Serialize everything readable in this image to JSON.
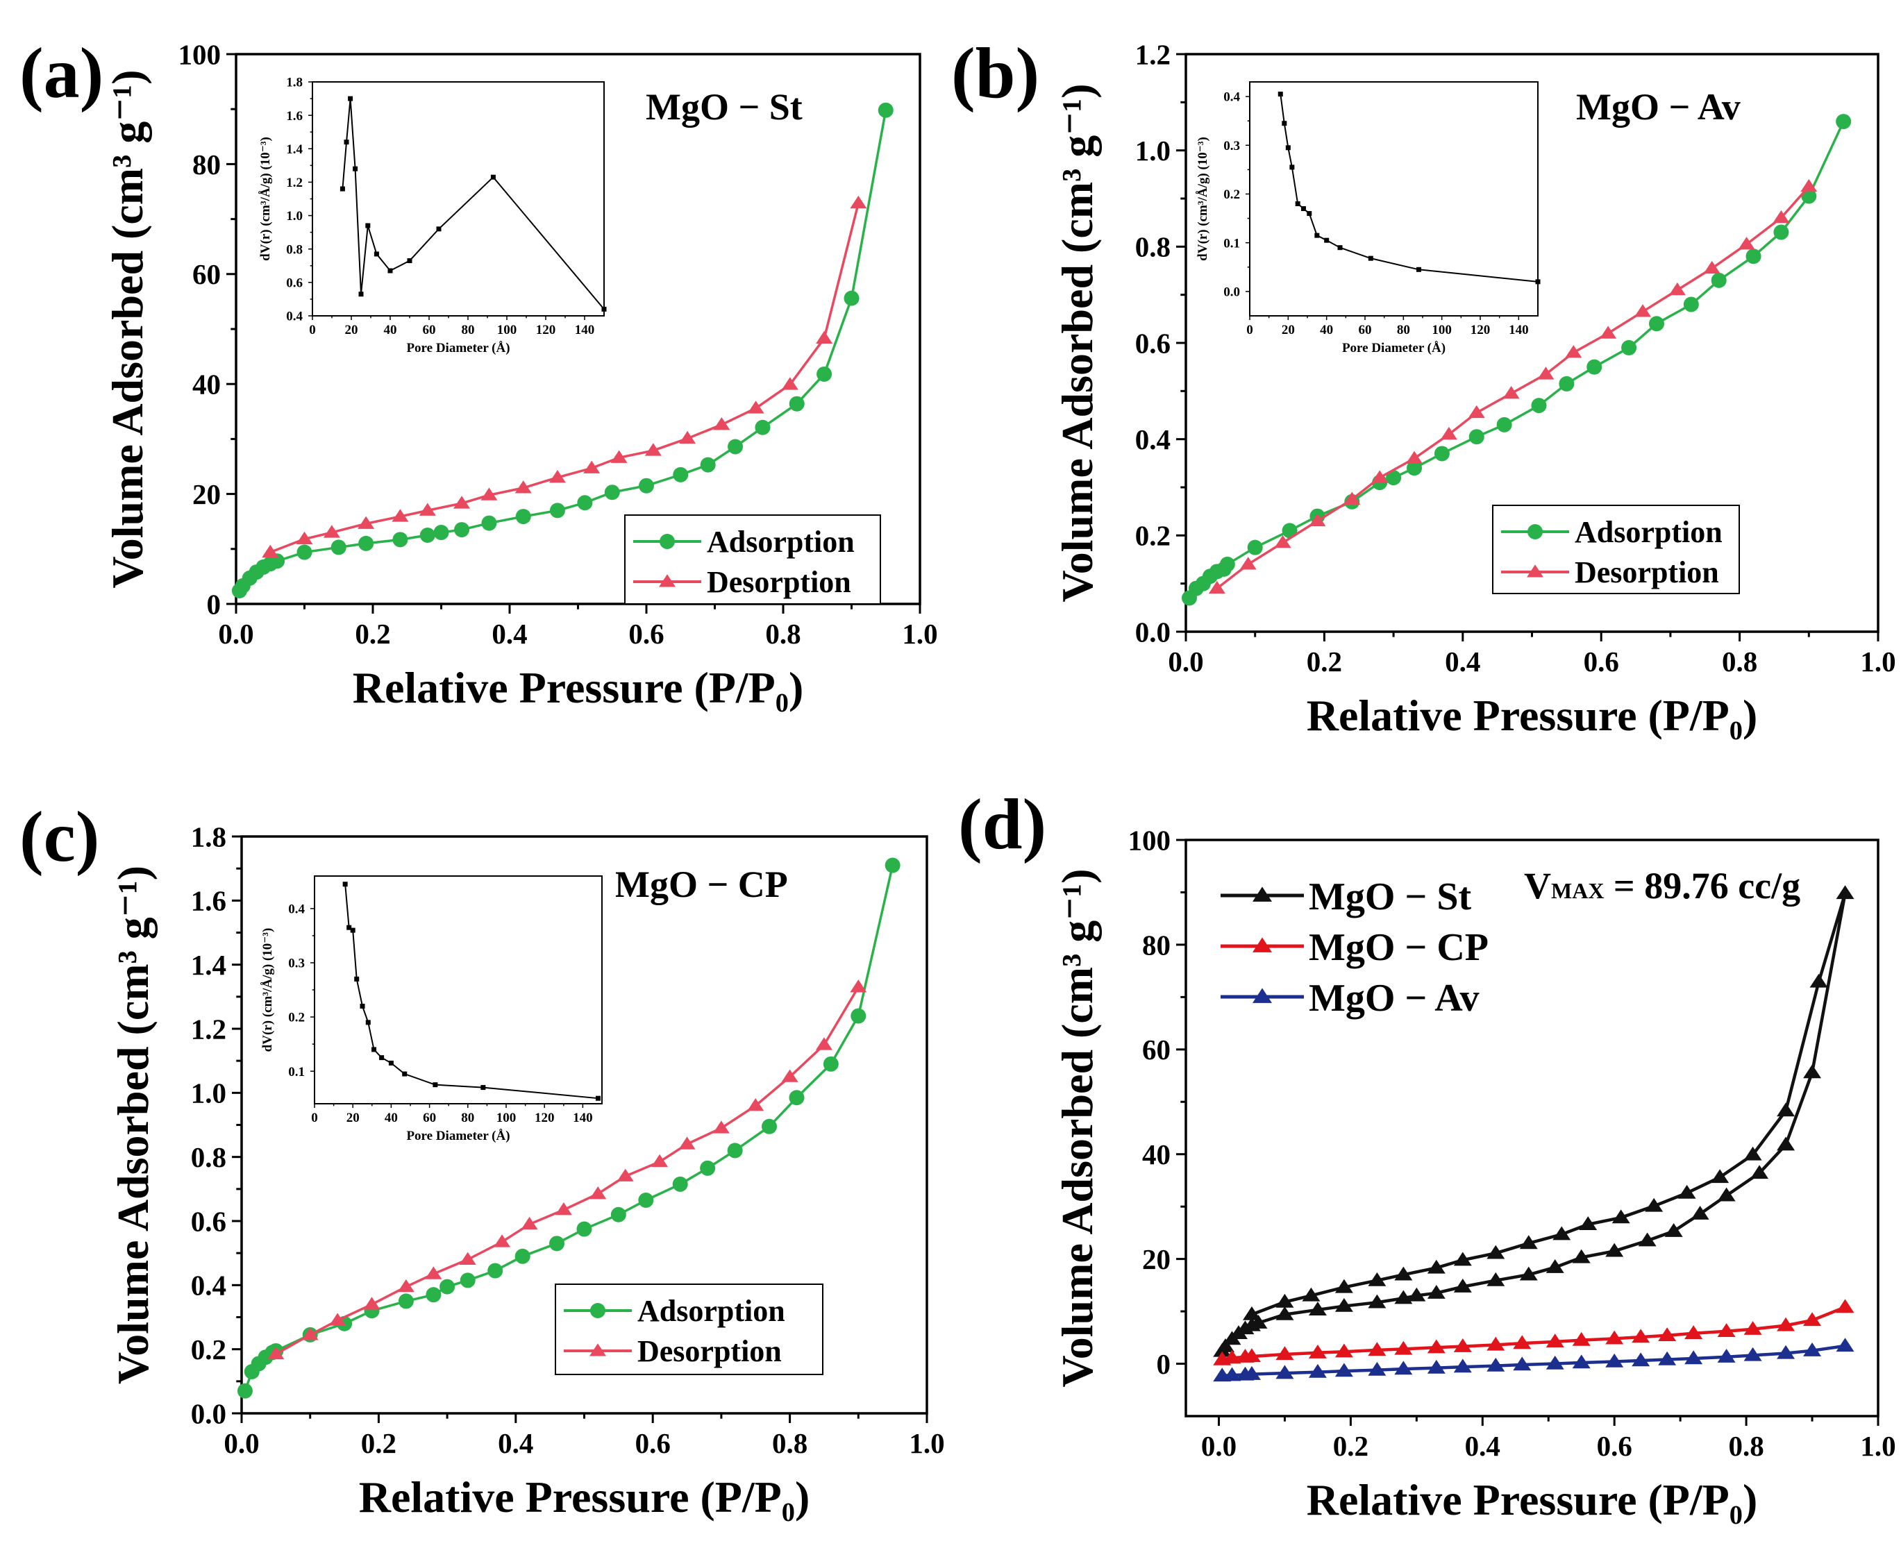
{
  "chart_data": [
    {
      "panel": "(a)",
      "type": "line",
      "material": "MgO − St",
      "xlabel": "Relative Pressure (P/P₀)",
      "ylabel": "Volume Adsorbed (cm³ g⁻¹)",
      "xlim": [
        0,
        1.0
      ],
      "ylim": [
        0,
        100
      ],
      "xticks": [
        0.0,
        0.2,
        0.4,
        0.6,
        0.8,
        1.0
      ],
      "yticks": [
        0,
        20,
        40,
        60,
        80,
        100
      ],
      "legend_position": "bottom-right",
      "series": [
        {
          "name": "Adsorption",
          "color": "#2ab24a",
          "marker": "circle",
          "x": [
            0.005,
            0.01,
            0.02,
            0.03,
            0.04,
            0.05,
            0.06,
            0.1,
            0.15,
            0.19,
            0.24,
            0.28,
            0.3,
            0.33,
            0.37,
            0.42,
            0.47,
            0.51,
            0.55,
            0.6,
            0.65,
            0.69,
            0.73,
            0.77,
            0.82,
            0.86,
            0.9,
            0.95
          ],
          "y": [
            2.4,
            3.3,
            4.7,
            5.8,
            6.7,
            7.3,
            7.8,
            9.4,
            10.3,
            11.0,
            11.7,
            12.5,
            13.0,
            13.5,
            14.7,
            15.9,
            17.0,
            18.4,
            20.3,
            21.5,
            23.5,
            25.3,
            28.6,
            32.1,
            36.4,
            41.8,
            55.6,
            89.8
          ]
        },
        {
          "name": "Desorption",
          "color": "#e8495f",
          "marker": "triangle",
          "x": [
            0.91,
            0.86,
            0.81,
            0.76,
            0.71,
            0.66,
            0.61,
            0.56,
            0.52,
            0.47,
            0.42,
            0.37,
            0.33,
            0.28,
            0.24,
            0.19,
            0.14,
            0.1,
            0.05
          ],
          "y": [
            72.9,
            48.3,
            39.9,
            35.6,
            32.6,
            30.1,
            27.9,
            26.6,
            24.7,
            23.0,
            21.1,
            19.8,
            18.3,
            17.0,
            15.9,
            14.6,
            13.0,
            11.8,
            9.4
          ]
        }
      ],
      "inset": {
        "xlabel": "Pore Diameter (Å)",
        "ylabel": "dV(r) (cm³/Å/g) (10⁻³)",
        "xlim": [
          0,
          150
        ],
        "ylim": [
          0.4,
          1.8
        ],
        "xticks": [
          0,
          20,
          40,
          60,
          80,
          100,
          120,
          140
        ],
        "yticks": [
          0.4,
          0.6,
          0.8,
          1.0,
          1.2,
          1.4,
          1.6,
          1.8
        ],
        "x": [
          15.5,
          17.5,
          19.5,
          22,
          25,
          28.5,
          33,
          40,
          50,
          65,
          93,
          150
        ],
        "y": [
          1.16,
          1.44,
          1.7,
          1.28,
          0.53,
          0.94,
          0.77,
          0.67,
          0.73,
          0.92,
          1.23,
          0.44
        ]
      }
    },
    {
      "panel": "(b)",
      "type": "line",
      "material": "MgO − Av",
      "xlabel": "Relative Pressure (P/P₀)",
      "ylabel": "Volume Adsorbed (cm³ g⁻¹)",
      "xlim": [
        0,
        1.0
      ],
      "ylim": [
        0,
        1.2
      ],
      "xticks": [
        0.0,
        0.2,
        0.4,
        0.6,
        0.8,
        1.0
      ],
      "yticks": [
        0.0,
        0.2,
        0.4,
        0.6,
        0.8,
        1.0,
        1.2
      ],
      "legend_position": "bottom-right",
      "series": [
        {
          "name": "Adsorption",
          "color": "#2ab24a",
          "marker": "circle",
          "x": [
            0.005,
            0.015,
            0.025,
            0.035,
            0.045,
            0.055,
            0.06,
            0.1,
            0.15,
            0.19,
            0.24,
            0.28,
            0.3,
            0.33,
            0.37,
            0.42,
            0.46,
            0.51,
            0.55,
            0.59,
            0.64,
            0.68,
            0.73,
            0.77,
            0.82,
            0.86,
            0.9,
            0.95
          ],
          "y": [
            0.07,
            0.09,
            0.1,
            0.115,
            0.125,
            0.13,
            0.14,
            0.175,
            0.21,
            0.24,
            0.27,
            0.31,
            0.32,
            0.34,
            0.37,
            0.405,
            0.43,
            0.47,
            0.515,
            0.55,
            0.59,
            0.64,
            0.68,
            0.73,
            0.78,
            0.83,
            0.905,
            1.06
          ]
        },
        {
          "name": "Desorption",
          "color": "#e8495f",
          "marker": "triangle",
          "x": [
            0.9,
            0.86,
            0.81,
            0.76,
            0.71,
            0.66,
            0.61,
            0.56,
            0.52,
            0.47,
            0.42,
            0.38,
            0.33,
            0.28,
            0.24,
            0.19,
            0.14,
            0.09,
            0.045
          ],
          "y": [
            0.925,
            0.86,
            0.805,
            0.755,
            0.71,
            0.665,
            0.62,
            0.58,
            0.535,
            0.495,
            0.455,
            0.41,
            0.36,
            0.32,
            0.275,
            0.23,
            0.185,
            0.14,
            0.09
          ]
        }
      ],
      "inset": {
        "xlabel": "Pore Diameter (Å)",
        "ylabel": "dV(r) (cm³/Å/g) (10⁻³)",
        "xlim": [
          0,
          150
        ],
        "ylim": [
          -0.05,
          0.43
        ],
        "xticks": [
          0,
          20,
          40,
          60,
          80,
          100,
          120,
          140
        ],
        "yticks": [
          0.0,
          0.1,
          0.2,
          0.3,
          0.4
        ],
        "x": [
          16,
          18,
          20,
          22,
          25,
          28,
          31,
          35,
          40,
          47,
          63,
          88,
          150
        ],
        "y": [
          0.405,
          0.345,
          0.295,
          0.255,
          0.18,
          0.17,
          0.16,
          0.115,
          0.105,
          0.09,
          0.068,
          0.045,
          0.02
        ]
      }
    },
    {
      "panel": "(c)",
      "type": "line",
      "material": "MgO − CP",
      "xlabel": "Relative Pressure (P/P₀)",
      "ylabel": "Volume Adsorbed (cm³ g⁻¹)",
      "xlim": [
        0,
        1.0
      ],
      "ylim": [
        0,
        1.8
      ],
      "xticks": [
        0.0,
        0.2,
        0.4,
        0.6,
        0.8,
        1.0
      ],
      "yticks": [
        0.0,
        0.2,
        0.4,
        0.6,
        0.8,
        1.0,
        1.2,
        1.4,
        1.6,
        1.8
      ],
      "legend_position": "bottom-right",
      "series": [
        {
          "name": "Adsorption",
          "color": "#2ab24a",
          "marker": "circle",
          "x": [
            0.005,
            0.015,
            0.025,
            0.035,
            0.045,
            0.05,
            0.1,
            0.15,
            0.19,
            0.24,
            0.28,
            0.3,
            0.33,
            0.37,
            0.41,
            0.46,
            0.5,
            0.55,
            0.59,
            0.64,
            0.68,
            0.72,
            0.77,
            0.81,
            0.86,
            0.9,
            0.95
          ],
          "y": [
            0.07,
            0.13,
            0.155,
            0.175,
            0.19,
            0.195,
            0.245,
            0.28,
            0.32,
            0.35,
            0.37,
            0.395,
            0.415,
            0.445,
            0.49,
            0.53,
            0.575,
            0.62,
            0.665,
            0.715,
            0.765,
            0.82,
            0.895,
            0.985,
            1.09,
            1.24,
            1.71
          ]
        },
        {
          "name": "Desorption",
          "color": "#e8495f",
          "marker": "triangle",
          "x": [
            0.9,
            0.85,
            0.8,
            0.75,
            0.7,
            0.65,
            0.61,
            0.56,
            0.52,
            0.47,
            0.42,
            0.38,
            0.33,
            0.28,
            0.24,
            0.19,
            0.14,
            0.1,
            0.05
          ],
          "y": [
            1.33,
            1.15,
            1.05,
            0.96,
            0.89,
            0.84,
            0.785,
            0.74,
            0.685,
            0.635,
            0.59,
            0.535,
            0.48,
            0.435,
            0.395,
            0.34,
            0.29,
            0.245,
            0.185
          ]
        }
      ],
      "inset": {
        "xlabel": "Pore Diameter (Å)",
        "ylabel": "dV(r) (cm³/Å/g) (10⁻³)",
        "xlim": [
          0,
          150
        ],
        "ylim": [
          0.04,
          0.46
        ],
        "xticks": [
          0,
          20,
          40,
          60,
          80,
          100,
          120,
          140
        ],
        "yticks": [
          0.1,
          0.2,
          0.3,
          0.4
        ],
        "x": [
          16,
          18,
          20,
          22,
          25,
          28,
          31,
          35,
          40,
          47,
          63,
          88,
          148
        ],
        "y": [
          0.445,
          0.365,
          0.36,
          0.27,
          0.22,
          0.19,
          0.14,
          0.125,
          0.115,
          0.095,
          0.075,
          0.07,
          0.05
        ]
      }
    },
    {
      "panel": "(d)",
      "type": "line",
      "xlabel": "Relative Pressure (P/P₀)",
      "ylabel": "Volume Adsorbed (cm³ g⁻¹)",
      "xlim": [
        -0.05,
        1.0
      ],
      "ylim": [
        -10,
        100
      ],
      "xticks": [
        0.0,
        0.2,
        0.4,
        0.6,
        0.8,
        1.0
      ],
      "yticks": [
        0,
        20,
        40,
        60,
        80,
        100
      ],
      "legend_position": "top-left",
      "annotation": "VMAX = 89.76 cc/g",
      "series": [
        {
          "name": "MgO − St",
          "color": "#111111",
          "marker": "triangle",
          "x": [
            0.005,
            0.01,
            0.02,
            0.03,
            0.04,
            0.05,
            0.06,
            0.1,
            0.15,
            0.19,
            0.24,
            0.28,
            0.3,
            0.33,
            0.37,
            0.42,
            0.47,
            0.51,
            0.55,
            0.6,
            0.65,
            0.69,
            0.73,
            0.77,
            0.82,
            0.86,
            0.9,
            0.95,
            0.91,
            0.86,
            0.81,
            0.76,
            0.71,
            0.66,
            0.61,
            0.56,
            0.52,
            0.47,
            0.42,
            0.37,
            0.33,
            0.28,
            0.24,
            0.19,
            0.14,
            0.1,
            0.05
          ],
          "y": [
            2.4,
            3.3,
            4.7,
            5.8,
            6.7,
            7.3,
            7.8,
            9.4,
            10.3,
            11.0,
            11.7,
            12.5,
            13.0,
            13.5,
            14.7,
            15.9,
            17.0,
            18.4,
            20.3,
            21.5,
            23.5,
            25.3,
            28.6,
            32.1,
            36.4,
            41.8,
            55.6,
            89.8,
            72.9,
            48.3,
            39.9,
            35.6,
            32.6,
            30.1,
            27.9,
            26.6,
            24.7,
            23.0,
            21.1,
            19.8,
            18.3,
            17.0,
            15.9,
            14.6,
            13.0,
            11.8,
            9.4
          ]
        },
        {
          "name": "MgO − CP",
          "color": "#e0141a",
          "marker": "triangle",
          "x": [
            0.005,
            0.02,
            0.04,
            0.05,
            0.1,
            0.15,
            0.19,
            0.24,
            0.28,
            0.33,
            0.37,
            0.42,
            0.46,
            0.51,
            0.55,
            0.6,
            0.64,
            0.68,
            0.72,
            0.77,
            0.81,
            0.86,
            0.9,
            0.95
          ],
          "y": [
            0.8,
            1.1,
            1.3,
            1.4,
            1.8,
            2.1,
            2.3,
            2.6,
            2.8,
            3.1,
            3.3,
            3.6,
            3.9,
            4.2,
            4.5,
            4.8,
            5.1,
            5.4,
            5.8,
            6.2,
            6.6,
            7.3,
            8.3,
            10.8
          ]
        },
        {
          "name": "MgO − Av",
          "color": "#1c2e8e",
          "marker": "triangle",
          "x": [
            0.005,
            0.02,
            0.04,
            0.05,
            0.1,
            0.15,
            0.19,
            0.24,
            0.28,
            0.33,
            0.37,
            0.42,
            0.46,
            0.51,
            0.55,
            0.6,
            0.64,
            0.68,
            0.72,
            0.77,
            0.81,
            0.86,
            0.9,
            0.95
          ],
          "y": [
            -2.3,
            -2.2,
            -2.1,
            -2.0,
            -1.8,
            -1.6,
            -1.4,
            -1.2,
            -1.0,
            -0.8,
            -0.6,
            -0.4,
            -0.2,
            0.0,
            0.2,
            0.4,
            0.6,
            0.8,
            1.0,
            1.3,
            1.6,
            2.0,
            2.5,
            3.4
          ]
        }
      ]
    }
  ]
}
